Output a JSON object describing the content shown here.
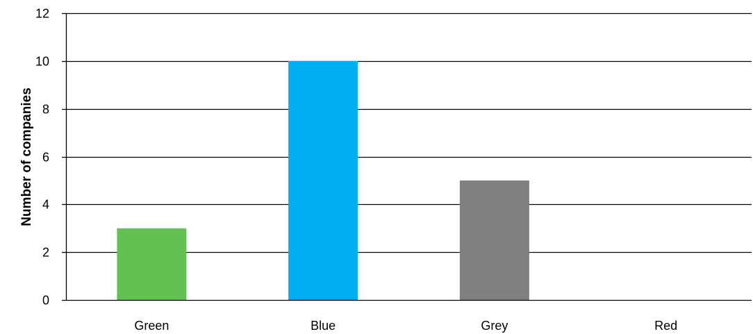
{
  "chart_data": {
    "type": "bar",
    "categories": [
      "Green",
      "Blue",
      "Grey",
      "Red"
    ],
    "values": [
      3,
      10,
      5,
      0
    ],
    "colors": [
      "#63c152",
      "#00b0f0",
      "#808080",
      "#ff0000"
    ],
    "xlabel": "",
    "ylabel": "Number of companies",
    "ylim": [
      0,
      12
    ],
    "yticks": [
      0,
      2,
      4,
      6,
      8,
      10,
      12
    ],
    "grid": true,
    "legend": "none"
  }
}
